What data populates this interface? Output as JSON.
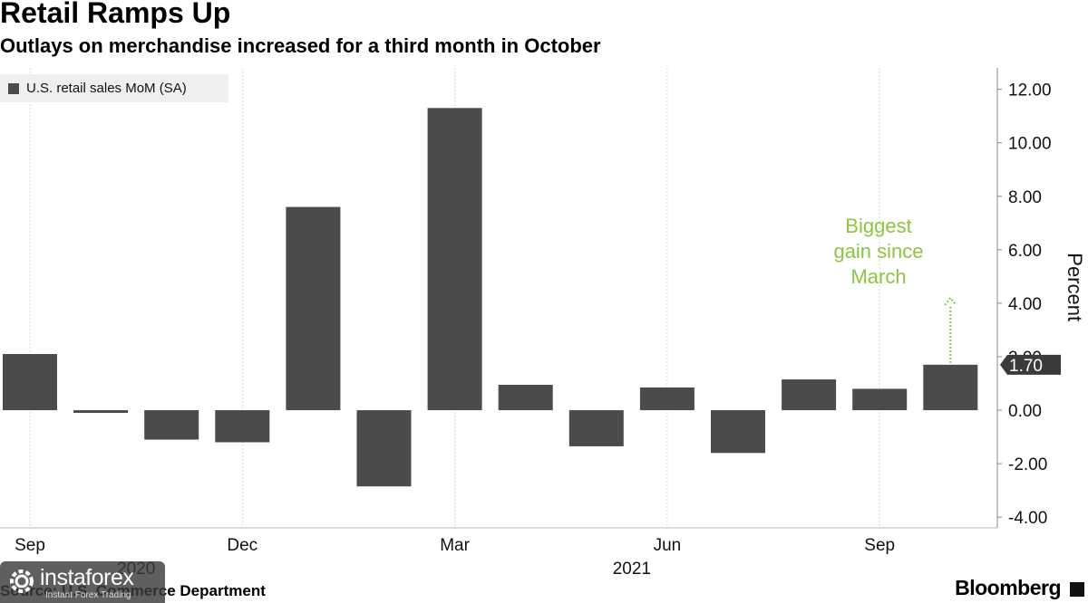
{
  "header": {
    "title": "Retail Ramps Up",
    "subtitle": "Outlays on merchandise increased for a third month in October"
  },
  "footer": {
    "source": "Source: U.S. Commerce Department",
    "brand": "Bloomberg"
  },
  "watermark": {
    "brand": "instaforex",
    "tagline": "Instant Forex Trading"
  },
  "colors": {
    "bar": "#4b4b4b",
    "annotation": "#8cc63f",
    "gridline": "#d9d9d9",
    "legend_bg": "#efefef"
  },
  "chart_data": {
    "type": "bar",
    "series": [
      {
        "name": "U.S. retail sales MoM (SA)",
        "values": [
          2.1,
          -0.1,
          -1.1,
          -1.2,
          7.6,
          -2.85,
          11.3,
          0.95,
          -1.35,
          0.85,
          -1.6,
          1.15,
          0.8,
          1.7
        ]
      }
    ],
    "months": [
      "Sep 2020",
      "Oct 2020",
      "Nov 2020",
      "Dec 2020",
      "Jan 2021",
      "Feb 2021",
      "Mar 2021",
      "Apr 2021",
      "May 2021",
      "Jun 2021",
      "Jul 2021",
      "Aug 2021",
      "Sep 2021",
      "Oct 2021"
    ],
    "x_tick_labels": [
      {
        "index": 0,
        "label": "Sep"
      },
      {
        "index": 3,
        "label": "Dec"
      },
      {
        "index": 6,
        "label": "Mar"
      },
      {
        "index": 9,
        "label": "Jun"
      },
      {
        "index": 12,
        "label": "Sep"
      }
    ],
    "x_year_labels": [
      {
        "index": 1.5,
        "label": "2020"
      },
      {
        "index": 8.5,
        "label": "2021"
      }
    ],
    "y_ticks": [
      12,
      10,
      8,
      6,
      4,
      2,
      0,
      -2,
      -4
    ],
    "y_tick_labels": [
      "12.00",
      "10.00",
      "8.00",
      "6.00",
      "4.00",
      "2.00",
      "0.00",
      "-2.00",
      "-4.00"
    ],
    "ylim": [
      -4.4,
      12.8
    ],
    "ylabel": "Percent",
    "last_value_label": "1.70",
    "annotation": {
      "lines": [
        "Biggest",
        "gain since",
        "March"
      ],
      "bar_index": 13,
      "arrow_to": 4.2
    },
    "grid": "vertical",
    "legend": "top-left"
  }
}
